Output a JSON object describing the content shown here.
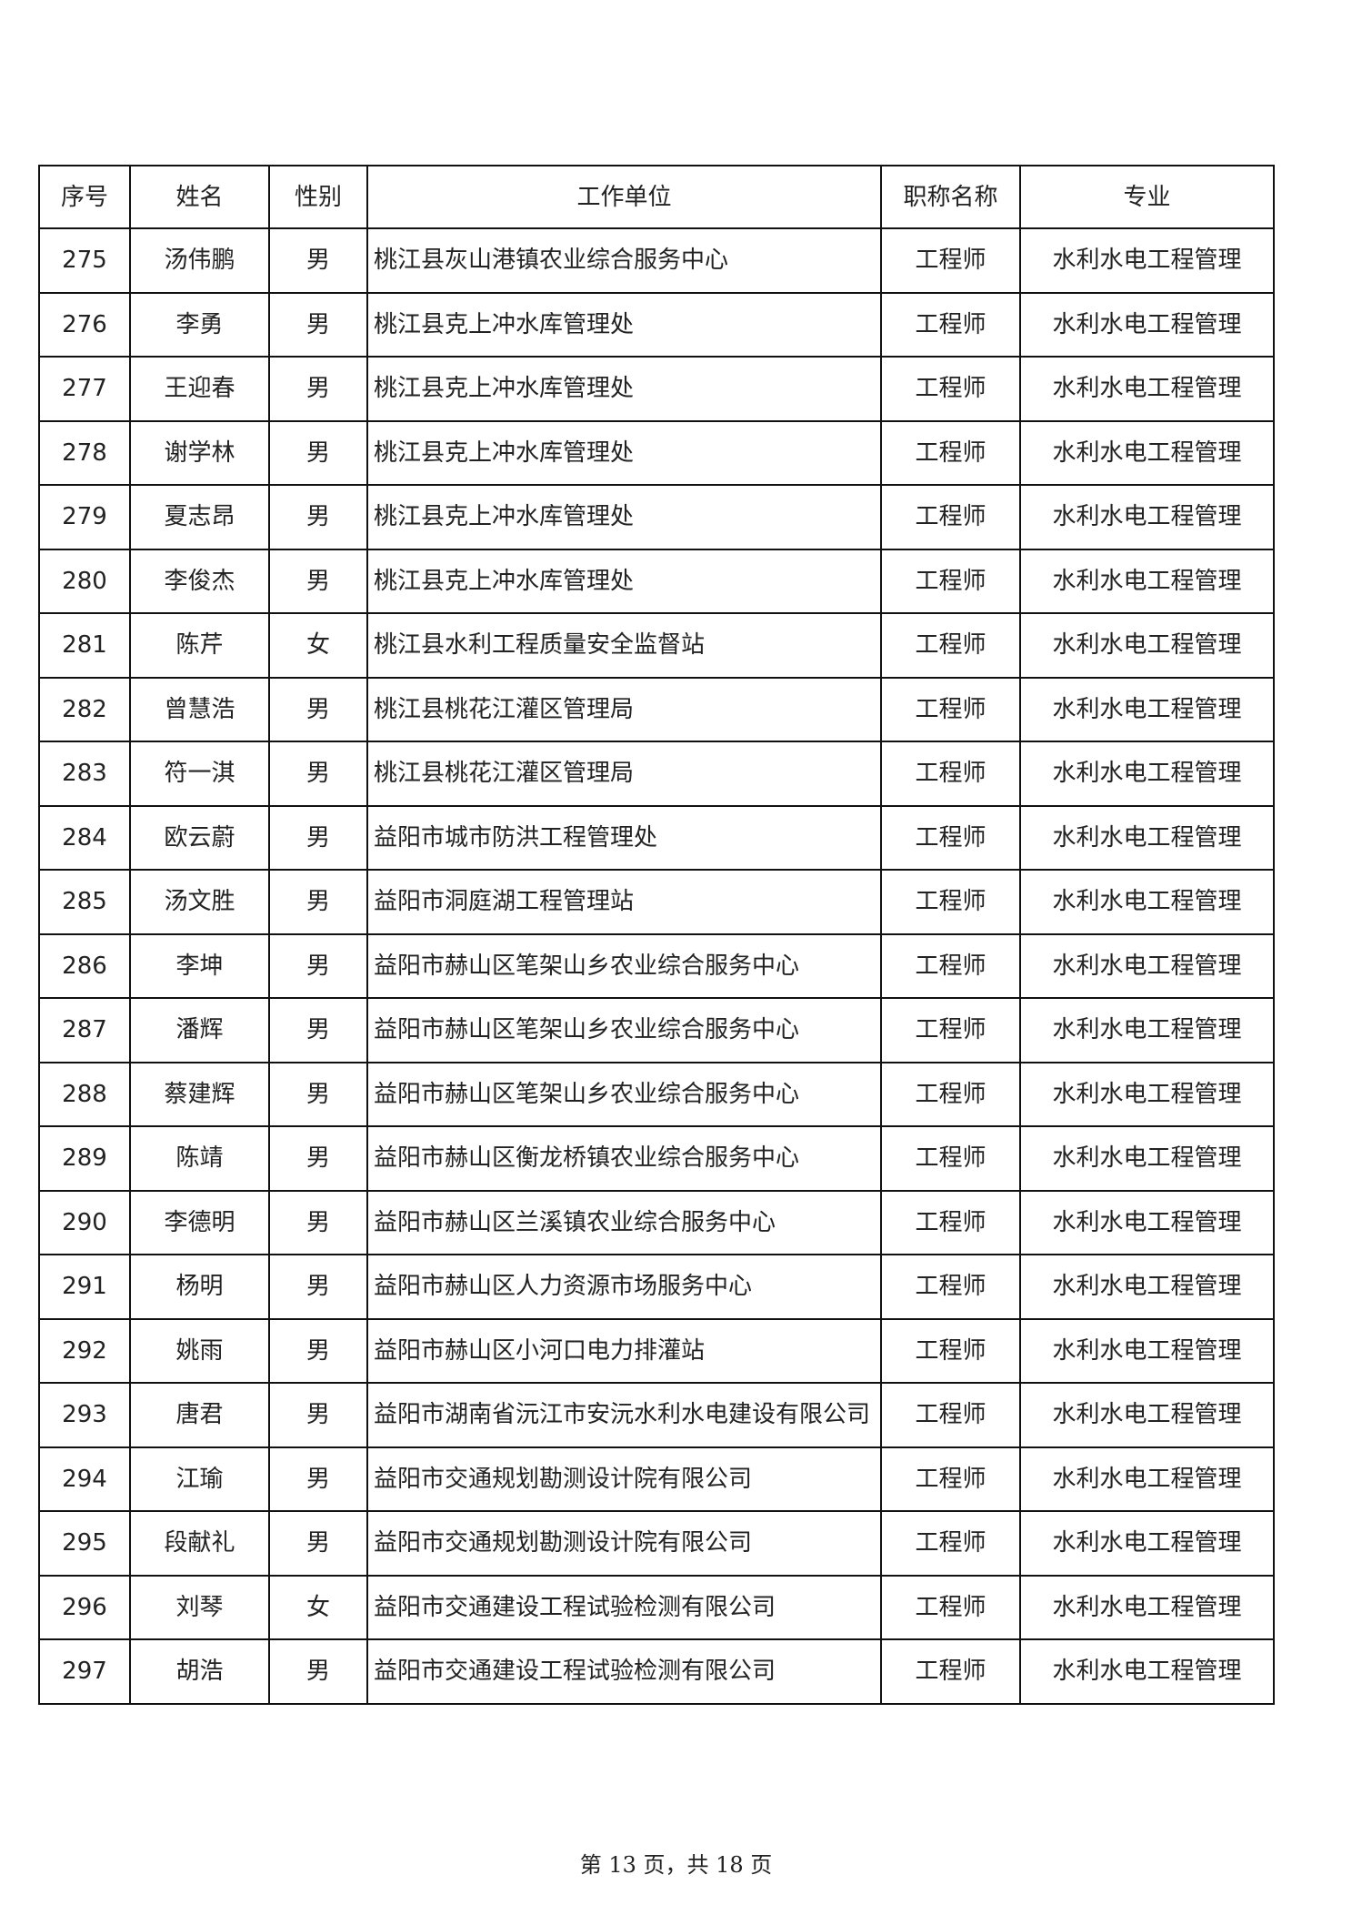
{
  "table": {
    "headers": [
      "序号",
      "姓名",
      "性别",
      "工作单位",
      "职称名称",
      "专业"
    ],
    "rows": [
      [
        "275",
        "汤伟鹏",
        "男",
        "桃江县灰山港镇农业综合服务中心",
        "工程师",
        "水利水电工程管理"
      ],
      [
        "276",
        "李勇",
        "男",
        "桃江县克上冲水库管理处",
        "工程师",
        "水利水电工程管理"
      ],
      [
        "277",
        "王迎春",
        "男",
        "桃江县克上冲水库管理处",
        "工程师",
        "水利水电工程管理"
      ],
      [
        "278",
        "谢学林",
        "男",
        "桃江县克上冲水库管理处",
        "工程师",
        "水利水电工程管理"
      ],
      [
        "279",
        "夏志昂",
        "男",
        "桃江县克上冲水库管理处",
        "工程师",
        "水利水电工程管理"
      ],
      [
        "280",
        "李俊杰",
        "男",
        "桃江县克上冲水库管理处",
        "工程师",
        "水利水电工程管理"
      ],
      [
        "281",
        "陈芹",
        "女",
        "桃江县水利工程质量安全监督站",
        "工程师",
        "水利水电工程管理"
      ],
      [
        "282",
        "曾慧浩",
        "男",
        "桃江县桃花江灌区管理局",
        "工程师",
        "水利水电工程管理"
      ],
      [
        "283",
        "符一淇",
        "男",
        "桃江县桃花江灌区管理局",
        "工程师",
        "水利水电工程管理"
      ],
      [
        "284",
        "欧云蔚",
        "男",
        "益阳市城市防洪工程管理处",
        "工程师",
        "水利水电工程管理"
      ],
      [
        "285",
        "汤文胜",
        "男",
        "益阳市洞庭湖工程管理站",
        "工程师",
        "水利水电工程管理"
      ],
      [
        "286",
        "李坤",
        "男",
        "益阳市赫山区笔架山乡农业综合服务中心",
        "工程师",
        "水利水电工程管理"
      ],
      [
        "287",
        "潘辉",
        "男",
        "益阳市赫山区笔架山乡农业综合服务中心",
        "工程师",
        "水利水电工程管理"
      ],
      [
        "288",
        "蔡建辉",
        "男",
        "益阳市赫山区笔架山乡农业综合服务中心",
        "工程师",
        "水利水电工程管理"
      ],
      [
        "289",
        "陈靖",
        "男",
        "益阳市赫山区衡龙桥镇农业综合服务中心",
        "工程师",
        "水利水电工程管理"
      ],
      [
        "290",
        "李德明",
        "男",
        "益阳市赫山区兰溪镇农业综合服务中心",
        "工程师",
        "水利水电工程管理"
      ],
      [
        "291",
        "杨明",
        "男",
        "益阳市赫山区人力资源市场服务中心",
        "工程师",
        "水利水电工程管理"
      ],
      [
        "292",
        "姚雨",
        "男",
        "益阳市赫山区小河口电力排灌站",
        "工程师",
        "水利水电工程管理"
      ],
      [
        "293",
        "唐君",
        "男",
        "益阳市湖南省沅江市安沅水利水电建设有限公司",
        "工程师",
        "水利水电工程管理"
      ],
      [
        "294",
        "江瑜",
        "男",
        "益阳市交通规划勘测设计院有限公司",
        "工程师",
        "水利水电工程管理"
      ],
      [
        "295",
        "段献礼",
        "男",
        "益阳市交通规划勘测设计院有限公司",
        "工程师",
        "水利水电工程管理"
      ],
      [
        "296",
        "刘琴",
        "女",
        "益阳市交通建设工程试验检测有限公司",
        "工程师",
        "水利水电工程管理"
      ],
      [
        "297",
        "胡浩",
        "男",
        "益阳市交通建设工程试验检测有限公司",
        "工程师",
        "水利水电工程管理"
      ]
    ]
  },
  "footer": "第 13 页，共 18 页"
}
